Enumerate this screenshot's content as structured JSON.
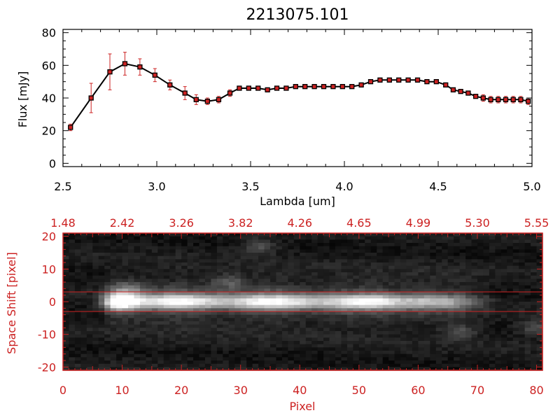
{
  "chart_data": [
    {
      "type": "line",
      "title": "2213075.101",
      "xlabel": "Lambda [um]",
      "ylabel": "Flux [mJy]",
      "xlim": [
        2.5,
        5.0
      ],
      "ylim": [
        -2,
        82
      ],
      "x_ticks": [
        "2.5",
        "3.0",
        "3.5",
        "4.0",
        "4.5",
        "5.0"
      ],
      "y_ticks": [
        "0",
        "20",
        "40",
        "60",
        "80"
      ],
      "colors": {
        "line": "#000000",
        "marker": "#cc2222",
        "errorbar": "#cc2222"
      },
      "series": [
        {
          "x": [
            2.54,
            2.65,
            2.75,
            2.83,
            2.91,
            2.99,
            3.07,
            3.15,
            3.21,
            3.27,
            3.33,
            3.39,
            3.44,
            3.49,
            3.54,
            3.59,
            3.64,
            3.69,
            3.74,
            3.79,
            3.84,
            3.89,
            3.94,
            3.99,
            4.04,
            4.09,
            4.14,
            4.19,
            4.24,
            4.29,
            4.34,
            4.39,
            4.44,
            4.49,
            4.54,
            4.58,
            4.62,
            4.66,
            4.7,
            4.74,
            4.78,
            4.82,
            4.86,
            4.9,
            4.94,
            4.98
          ],
          "y": [
            22,
            40,
            56,
            61,
            59,
            54,
            48,
            43,
            39,
            38,
            39,
            43,
            46,
            46,
            46,
            45,
            46,
            46,
            47,
            47,
            47,
            47,
            47,
            47,
            47,
            48,
            50,
            51,
            51,
            51,
            51,
            51,
            50,
            50,
            48,
            45,
            44,
            43,
            41,
            40,
            39,
            39,
            39,
            39,
            39,
            38
          ],
          "err": [
            2,
            9,
            11,
            7,
            5,
            4,
            3,
            4,
            3,
            2,
            2,
            2,
            1,
            1,
            1,
            1,
            1,
            1,
            1,
            1,
            1,
            1,
            1,
            1,
            1,
            1,
            1,
            1,
            1,
            1,
            1,
            1,
            1,
            1,
            1,
            1,
            1,
            1,
            1,
            2,
            2,
            2,
            2,
            2,
            2,
            2
          ]
        }
      ]
    },
    {
      "type": "heatmap",
      "xlabel": "Pixel",
      "ylabel": "Space Shift [pixel]",
      "xlim": [
        0,
        81
      ],
      "ylim": [
        -21,
        21
      ],
      "x_ticks": [
        "0",
        "10",
        "20",
        "30",
        "40",
        "50",
        "60",
        "70",
        "80"
      ],
      "y_ticks": [
        "-20",
        "-10",
        "0",
        "10",
        "20"
      ],
      "top_ticks": [
        "1.48",
        "2.42",
        "3.26",
        "3.82",
        "4.26",
        "4.65",
        "4.99",
        "5.30",
        "5.55"
      ],
      "extraction_band": [
        -3,
        3
      ],
      "colors": {
        "axis": "#cc2222",
        "band_line": "#cc2222"
      },
      "spectral_trace_row": 0,
      "bright_source": {
        "x": 10,
        "y": 0
      },
      "secondary_sources": [
        {
          "x": 33,
          "y": 17
        },
        {
          "x": 28,
          "y": 6
        },
        {
          "x": 11,
          "y": 4
        },
        {
          "x": 67,
          "y": -9
        },
        {
          "x": 80,
          "y": -8
        }
      ]
    }
  ]
}
